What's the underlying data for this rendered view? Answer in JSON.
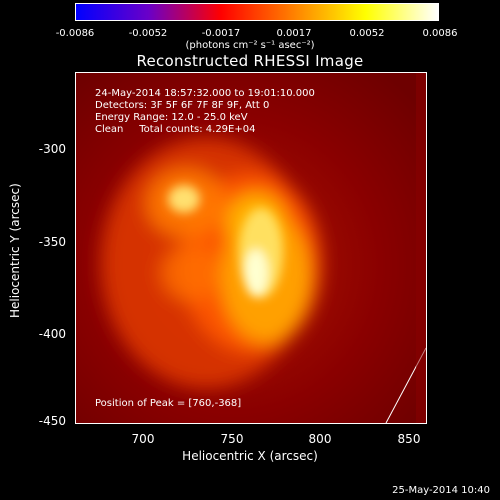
{
  "colorbar": {
    "ticks": [
      "-0.0086",
      "-0.0052",
      "-0.0017",
      "0.0017",
      "0.0052",
      "0.0086"
    ],
    "units": "(photons cm⁻² s⁻¹ asec⁻²)",
    "colors": [
      "#0000ff",
      "#6a00c8",
      "#ff0000",
      "#ff8000",
      "#ffff00",
      "#ffffff"
    ]
  },
  "title": "Reconstructed RHESSI Image",
  "info": {
    "time_range": "24-May-2014 18:57:32.000 to 19:01:10.000",
    "detectors": "Detectors: 3F 5F 6F 7F 8F 9F, Att 0",
    "energy": "Energy Range: 12.0 - 25.0 keV",
    "clean": "Clean     Total counts: 4.29E+04"
  },
  "peak_text": "Position of Peak = [760,-368]",
  "axes": {
    "ylabel": "Heliocentric Y (arcsec)",
    "xlabel": "Heliocentric X (arcsec)",
    "yticks": [
      "-300",
      "-350",
      "-400",
      "-450"
    ],
    "xticks": [
      "700",
      "750",
      "800",
      "850"
    ]
  },
  "timestamp": "25-May-2014 10:40"
}
